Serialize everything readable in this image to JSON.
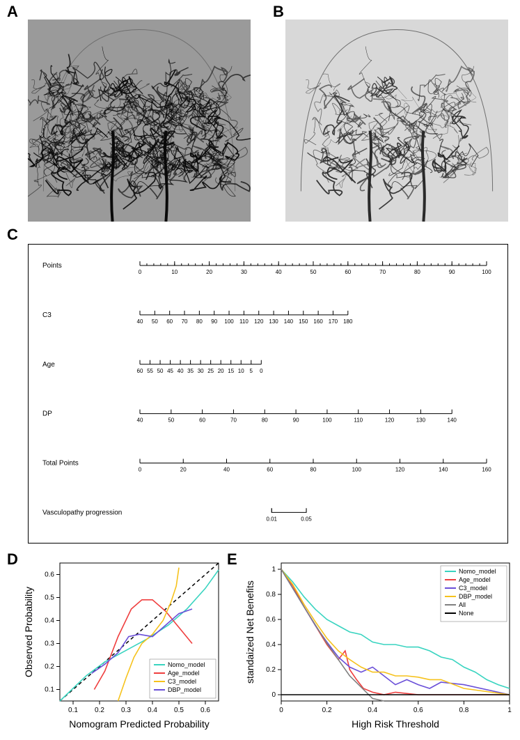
{
  "panelLabels": {
    "A": "A",
    "B": "B",
    "C": "C",
    "D": "D",
    "E": "E"
  },
  "angiograms": {
    "A": {
      "background": "#9a9a9a",
      "stroke": "#0a0a0a"
    },
    "B": {
      "background": "#d8d8d8",
      "stroke": "#2a2a2a"
    }
  },
  "nomogram": {
    "rows": [
      {
        "label": "Points",
        "ticks": [
          0,
          10,
          20,
          30,
          40,
          50,
          60,
          70,
          80,
          90,
          100
        ],
        "minor_step": 2,
        "span": 1.0
      },
      {
        "label": "C3",
        "ticks": [
          40,
          50,
          60,
          70,
          80,
          90,
          100,
          110,
          120,
          130,
          140,
          150,
          160,
          170,
          180
        ],
        "span": 0.6
      },
      {
        "label": "Age",
        "ticks": [
          60,
          55,
          50,
          45,
          40,
          35,
          30,
          25,
          20,
          15,
          10,
          5,
          0
        ],
        "span": 0.35
      },
      {
        "label": "DP",
        "ticks": [
          40,
          50,
          60,
          70,
          80,
          90,
          100,
          110,
          120,
          130,
          140
        ],
        "span": 0.9
      },
      {
        "label": "Total Points",
        "ticks": [
          0,
          20,
          40,
          60,
          80,
          100,
          120,
          140,
          160
        ],
        "span": 1.0
      },
      {
        "label": "Vasculopathy progression",
        "ticks": [
          0.01,
          0.05
        ],
        "span": 0.1,
        "offset": 0.38,
        "bracket": true
      }
    ],
    "label_fontsize": 10,
    "tick_fontsize": 8,
    "line_color": "#000000"
  },
  "calibration": {
    "xlabel": "Nomogram Predicted Probability",
    "ylabel": "Observed Probability",
    "xlim": [
      0.05,
      0.65
    ],
    "ylim": [
      0.05,
      0.65
    ],
    "xticks": [
      0.1,
      0.2,
      0.3,
      0.4,
      0.5,
      0.6
    ],
    "yticks": [
      0.1,
      0.2,
      0.3,
      0.4,
      0.5,
      0.6
    ],
    "axis_fontsize": 14,
    "tick_fontsize": 10,
    "diagonal_color": "#000000",
    "series": [
      {
        "name": "Nomo_model",
        "color": "#39d4c0",
        "x": [
          0.05,
          0.15,
          0.22,
          0.3,
          0.38,
          0.46,
          0.53,
          0.6,
          0.65
        ],
        "y": [
          0.05,
          0.16,
          0.22,
          0.27,
          0.32,
          0.38,
          0.45,
          0.54,
          0.62
        ]
      },
      {
        "name": "Age_model",
        "color": "#ef3e3e",
        "x": [
          0.18,
          0.22,
          0.27,
          0.32,
          0.36,
          0.4,
          0.45,
          0.5,
          0.55
        ],
        "y": [
          0.1,
          0.18,
          0.33,
          0.45,
          0.49,
          0.49,
          0.44,
          0.37,
          0.3
        ]
      },
      {
        "name": "C3_model",
        "color": "#f6c21c",
        "x": [
          0.27,
          0.3,
          0.33,
          0.36,
          0.4,
          0.44,
          0.47,
          0.49,
          0.5
        ],
        "y": [
          0.05,
          0.15,
          0.24,
          0.3,
          0.34,
          0.4,
          0.48,
          0.55,
          0.63
        ]
      },
      {
        "name": "DBP_model",
        "color": "#6a4fd8",
        "x": [
          0.17,
          0.22,
          0.27,
          0.31,
          0.35,
          0.4,
          0.45,
          0.5,
          0.55
        ],
        "y": [
          0.17,
          0.21,
          0.26,
          0.33,
          0.34,
          0.33,
          0.38,
          0.43,
          0.45
        ]
      }
    ],
    "legend_pos": "lower-right"
  },
  "dca": {
    "xlabel": "High Risk Threshold",
    "ylabel": "standaized Net Benefits",
    "xlim": [
      0.0,
      1.0
    ],
    "ylim": [
      -0.05,
      1.05
    ],
    "xticks": [
      0.0,
      0.2,
      0.4,
      0.6,
      0.8,
      1.0
    ],
    "yticks": [
      0.0,
      0.2,
      0.4,
      0.6,
      0.8,
      1.0
    ],
    "axis_fontsize": 14,
    "tick_fontsize": 10,
    "series": [
      {
        "name": "Nomo_model",
        "color": "#39d4c0",
        "x": [
          0.0,
          0.05,
          0.1,
          0.15,
          0.2,
          0.25,
          0.3,
          0.35,
          0.4,
          0.45,
          0.5,
          0.55,
          0.6,
          0.65,
          0.7,
          0.75,
          0.8,
          0.85,
          0.9,
          0.95,
          1.0
        ],
        "y": [
          1.0,
          0.9,
          0.78,
          0.68,
          0.6,
          0.55,
          0.5,
          0.48,
          0.42,
          0.4,
          0.4,
          0.38,
          0.38,
          0.35,
          0.3,
          0.28,
          0.22,
          0.18,
          0.12,
          0.08,
          0.05
        ]
      },
      {
        "name": "Age_model",
        "color": "#ef3e3e",
        "x": [
          0.0,
          0.05,
          0.1,
          0.15,
          0.2,
          0.25,
          0.28,
          0.3,
          0.33,
          0.36,
          0.4,
          0.45,
          0.5,
          0.6,
          0.8,
          1.0
        ],
        "y": [
          1.0,
          0.87,
          0.7,
          0.55,
          0.4,
          0.28,
          0.35,
          0.2,
          0.12,
          0.05,
          0.02,
          0.0,
          0.02,
          0.0,
          0.0,
          0.0
        ]
      },
      {
        "name": "C3_model",
        "color": "#6a4fd8",
        "x": [
          0.0,
          0.05,
          0.1,
          0.15,
          0.2,
          0.25,
          0.3,
          0.35,
          0.4,
          0.45,
          0.5,
          0.55,
          0.6,
          0.65,
          0.7,
          0.8,
          1.0
        ],
        "y": [
          1.0,
          0.85,
          0.7,
          0.55,
          0.42,
          0.3,
          0.22,
          0.18,
          0.22,
          0.15,
          0.08,
          0.12,
          0.08,
          0.05,
          0.1,
          0.08,
          0.0
        ]
      },
      {
        "name": "DBP_model",
        "color": "#f6c21c",
        "x": [
          0.0,
          0.05,
          0.1,
          0.15,
          0.2,
          0.25,
          0.3,
          0.35,
          0.4,
          0.45,
          0.5,
          0.55,
          0.6,
          0.65,
          0.7,
          0.8,
          1.0
        ],
        "y": [
          1.0,
          0.88,
          0.72,
          0.58,
          0.45,
          0.35,
          0.28,
          0.22,
          0.18,
          0.18,
          0.15,
          0.15,
          0.14,
          0.12,
          0.12,
          0.05,
          0.0
        ]
      },
      {
        "name": "All",
        "color": "#808080",
        "x": [
          0.0,
          0.1,
          0.2,
          0.3,
          0.4,
          0.45
        ],
        "y": [
          1.0,
          0.7,
          0.41,
          0.15,
          -0.03,
          -0.05
        ]
      },
      {
        "name": "None",
        "color": "#000000",
        "x": [
          0.0,
          1.0
        ],
        "y": [
          0.0,
          0.0
        ]
      }
    ],
    "legend_pos": "upper-right"
  }
}
